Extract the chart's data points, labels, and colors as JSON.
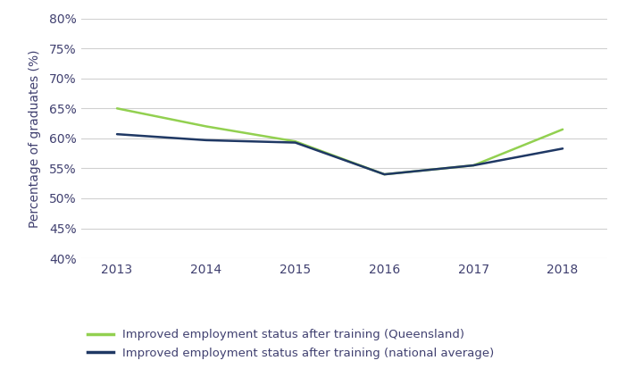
{
  "years": [
    2013,
    2014,
    2015,
    2016,
    2017,
    2018
  ],
  "queensland": [
    65,
    62,
    59.5,
    54,
    55.5,
    61.5
  ],
  "national_avg": [
    60.7,
    59.7,
    59.3,
    54,
    55.5,
    58.3
  ],
  "qld_color": "#92d050",
  "nat_color": "#1f3864",
  "ylabel": "Percentage of graduates (%)",
  "ylim_min": 40,
  "ylim_max": 80,
  "yticks": [
    40,
    45,
    50,
    55,
    60,
    65,
    70,
    75,
    80
  ],
  "ytick_labels": [
    "40%",
    "45%",
    "50%",
    "55%",
    "60%",
    "65%",
    "70%",
    "75%",
    "80%"
  ],
  "legend_qld": "Improved employment status after training (Queensland)",
  "legend_nat": "Improved employment status after training (national average)",
  "line_width": 1.8,
  "bg_color": "#ffffff",
  "grid_color": "#d0d0d0",
  "tick_label_color": "#404070",
  "ylabel_color": "#404070",
  "legend_fontsize": 9.5,
  "tick_fontsize": 10
}
